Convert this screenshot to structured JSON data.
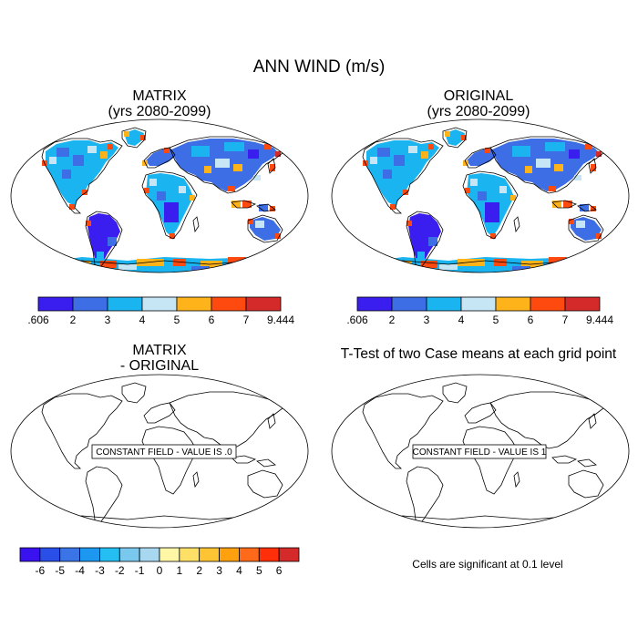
{
  "title": "ANN WIND (m/s)",
  "panels": [
    {
      "id": "matrix",
      "title_line1": "MATRIX",
      "title_line2": "(yrs 2080-2099)",
      "kind": "field"
    },
    {
      "id": "original",
      "title_line1": "ORIGINAL",
      "title_line2": "(yrs 2080-2099)",
      "kind": "field"
    },
    {
      "id": "difference",
      "title_line1": "MATRIX",
      "title_line2": "- ORIGINAL",
      "kind": "constant",
      "constant_text": "CONSTANT FIELD - VALUE IS .0"
    },
    {
      "id": "ttest",
      "title_line1": "T-Test of two Case means at each grid point",
      "title_line2": "",
      "kind": "constant",
      "constant_text": "CONSTANT FIELD - VALUE IS 1"
    }
  ],
  "field_colorbar": {
    "labels": [
      ".606",
      "2",
      "3",
      "4",
      "5",
      "6",
      "7",
      "9.444"
    ],
    "colors": [
      "#3a1ef0",
      "#3d6ee6",
      "#1ab4f0",
      "#c7e6f5",
      "#ffb31a",
      "#ff4a0f",
      "#d42a2a"
    ]
  },
  "diff_colorbar": {
    "labels": [
      "-6",
      "-5",
      "-4",
      "-3",
      "-2",
      "-1",
      "0",
      "1",
      "2",
      "3",
      "4",
      "5",
      "6"
    ],
    "colors": [
      "#3a12f0",
      "#2a4ee8",
      "#3a74e6",
      "#1c98f0",
      "#24bef2",
      "#7ac8ee",
      "#a8d8f0",
      "#fff7a6",
      "#ffe066",
      "#ffc433",
      "#ffa10f",
      "#ff6a1a",
      "#ff2f0a",
      "#d42a2a"
    ]
  },
  "significance_note": "Cells are significant at 0.1 level"
}
